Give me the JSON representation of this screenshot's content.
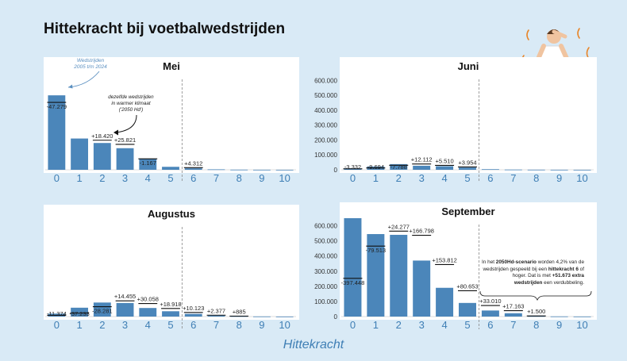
{
  "page": {
    "title": "Hittekracht bij voetbalwedstrijden",
    "footer_xlabel": "Hittekracht"
  },
  "annotations": {
    "mei_blue_note_line1": "Wedstrijden",
    "mei_blue_note_line2": "2005 t/m 2024",
    "mei_black_note_line1": "dezelfde wedstrijden",
    "mei_black_note_line2": "in warmer klimaat",
    "mei_black_note_line3": "('2050 Hd')",
    "sep_note_line1_pre": "In het ",
    "sep_note_line1_bold": "2050Hd-scenario",
    "sep_note_line1_post": " worden 4,2% van de",
    "sep_note_line2": "wedstrijden gespeeld bij een ",
    "sep_note_line2_bold": "hittekracht 6",
    "sep_note_line2_post": " of",
    "sep_note_line3_pre": "hoger.  Dat is met ",
    "sep_note_line3_bold": "+51.673 extra",
    "sep_note_line4_bold": "wedstrijden",
    "sep_note_line4_post": " een verdubbeling."
  },
  "chart_data": [
    {
      "type": "bar",
      "title": "Mei",
      "categories": [
        "0",
        "1",
        "2",
        "3",
        "4",
        "5",
        "6",
        "7",
        "8",
        "9",
        "10"
      ],
      "values": [
        500000,
        210000,
        180000,
        145000,
        75000,
        20000,
        10000,
        3000,
        1000,
        500,
        200
      ],
      "change_labels": [
        "-47.279",
        "",
        "+18.420",
        "+25.821",
        "-1.167",
        "",
        "+4.312",
        "",
        "",
        "",
        ""
      ],
      "change_offsets": [
        -47279,
        0,
        18420,
        25821,
        -1167,
        0,
        4312,
        0,
        0,
        0,
        0
      ],
      "ylim": [
        0,
        650000
      ],
      "yticks": [],
      "threshold_after_category": "5",
      "colors": {
        "bar": "#4b86ba",
        "marker": "#111111"
      }
    },
    {
      "type": "bar",
      "title": "Juni",
      "categories": [
        "0",
        "1",
        "2",
        "3",
        "4",
        "5",
        "6",
        "7",
        "8",
        "9",
        "10"
      ],
      "values": [
        10000,
        22000,
        38000,
        27000,
        24000,
        15000,
        4000,
        1500,
        800,
        400,
        200
      ],
      "change_labels": [
        "-3.332",
        "-9.694",
        "-7.788",
        "+12.112",
        "+5.510",
        "+3.954",
        "",
        "",
        "",
        "",
        ""
      ],
      "change_offsets": [
        -3332,
        -9694,
        -7788,
        12112,
        5510,
        3954,
        0,
        0,
        0,
        0,
        0
      ],
      "ylim": [
        0,
        650000
      ],
      "yticks": [
        [
          "0",
          "0"
        ],
        [
          "100000",
          "100.000"
        ],
        [
          "200000",
          "200.000"
        ],
        [
          "300000",
          "300.000"
        ],
        [
          "400000",
          "400.000"
        ],
        [
          "500000",
          "500.000"
        ],
        [
          "600000",
          "600.000"
        ]
      ],
      "threshold_after_category": "5",
      "colors": {
        "bar": "#4b86ba",
        "marker": "#111111"
      }
    },
    {
      "type": "bar",
      "title": "Augustus",
      "categories": [
        "0",
        "1",
        "2",
        "3",
        "4",
        "5",
        "6",
        "7",
        "8",
        "9",
        "10"
      ],
      "values": [
        20000,
        60000,
        95000,
        92000,
        58000,
        36000,
        18000,
        7000,
        2500,
        800,
        300
      ],
      "change_labels": [
        "-11.374",
        "-37.233",
        "-28.281",
        "+14.455",
        "+30.058",
        "+18.918",
        "+10.123",
        "+2.377",
        "+885",
        "",
        ""
      ],
      "change_offsets": [
        -11374,
        -37233,
        -28281,
        14455,
        30058,
        18918,
        10123,
        2377,
        885,
        0,
        0
      ],
      "ylim": [
        0,
        650000
      ],
      "yticks": [],
      "threshold_after_category": "5",
      "colors": {
        "bar": "#4b86ba",
        "marker": "#111111"
      }
    },
    {
      "type": "bar",
      "title": "September",
      "categories": [
        "0",
        "1",
        "2",
        "3",
        "4",
        "5",
        "6",
        "7",
        "8",
        "9",
        "10"
      ],
      "values": [
        650000,
        545000,
        540000,
        370000,
        190000,
        90000,
        40000,
        22000,
        3000,
        1000,
        500
      ],
      "change_labels": [
        "-397.448",
        "-79.513",
        "+24.277",
        "+166.798",
        "+153.812",
        "+80.653",
        "+33.010",
        "+17.163",
        "+1.500",
        "",
        ""
      ],
      "change_offsets": [
        -397448,
        -79513,
        24277,
        166798,
        153812,
        80653,
        33010,
        17163,
        1500,
        0,
        0
      ],
      "ylim": [
        0,
        650000
      ],
      "yticks": [
        [
          "0",
          "0"
        ],
        [
          "100000",
          "100.000"
        ],
        [
          "200000",
          "200.000"
        ],
        [
          "300000",
          "300.000"
        ],
        [
          "400000",
          "400.000"
        ],
        [
          "500000",
          "500.000"
        ],
        [
          "600000",
          "600.000"
        ]
      ],
      "threshold_after_category": "5",
      "colors": {
        "bar": "#4b86ba",
        "marker": "#111111"
      }
    }
  ]
}
